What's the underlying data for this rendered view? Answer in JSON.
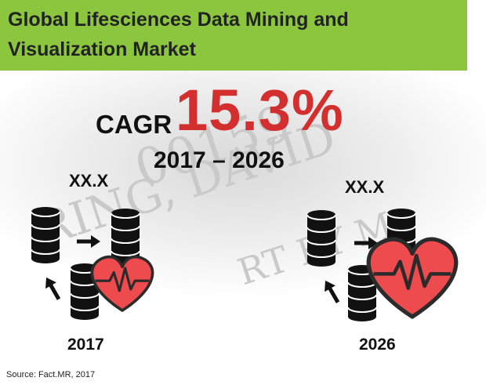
{
  "title": "Global Lifesciences Data Mining and Visualization Market",
  "cagr": {
    "label": "CAGR",
    "value": "15.3%",
    "period": "2017 – 2026"
  },
  "colors": {
    "title_bg": "#8cc63f",
    "cagr": "#d32f2f",
    "heart": "#ee4b4f",
    "heart_stroke": "#2b2b2b",
    "database": "#111111"
  },
  "chart_data": {
    "type": "bar",
    "categories": [
      "2017",
      "2026"
    ],
    "value_labels": [
      "XX.X",
      "XX.X"
    ],
    "marker_icons": [
      "database-heart-icon",
      "database-heart-icon"
    ],
    "marker_scale": [
      1.0,
      1.3
    ]
  },
  "source": "Source: Fact.MR, 2017"
}
